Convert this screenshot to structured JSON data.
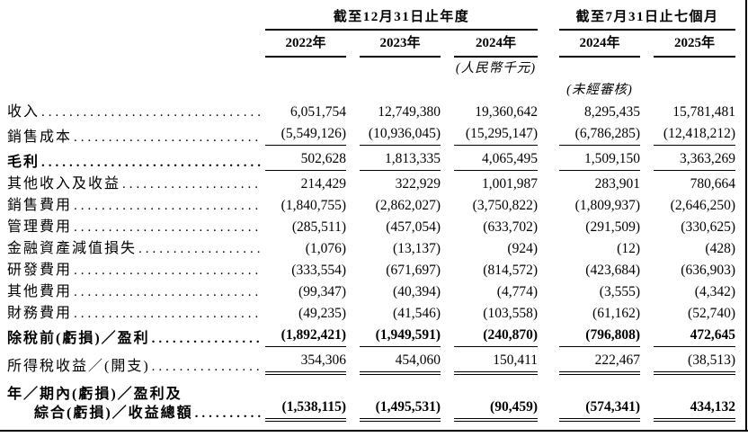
{
  "table": {
    "col_groups": [
      {
        "title": "截至12月31日止年度",
        "cols": [
          "2022年",
          "2023年",
          "2024年"
        ]
      },
      {
        "title": "截至7月31日止七個月",
        "cols": [
          "2024年",
          "2025年"
        ]
      }
    ],
    "unit_note": "(人民幣千元)",
    "unaudited_note": "(未經審核)",
    "rows": [
      {
        "label": "收入",
        "values": [
          "6,051,754",
          "12,749,380",
          "19,360,642",
          "8,295,435",
          "15,781,481"
        ],
        "rule": "none"
      },
      {
        "label": "銷售成本",
        "values": [
          "(5,549,126)",
          "(10,936,045)",
          "(15,295,147)",
          "(6,786,285)",
          "(12,418,212)"
        ],
        "rule": "single"
      },
      {
        "label": "毛利",
        "bold_label": true,
        "values": [
          "502,628",
          "1,813,335",
          "4,065,495",
          "1,509,150",
          "3,363,269"
        ],
        "rule": "single"
      },
      {
        "label": "其他收入及收益",
        "values": [
          "214,429",
          "322,929",
          "1,001,987",
          "283,901",
          "780,664"
        ],
        "rule": "none"
      },
      {
        "label": "銷售費用",
        "values": [
          "(1,840,755)",
          "(2,862,027)",
          "(3,750,822)",
          "(1,809,937)",
          "(2,646,250)"
        ],
        "rule": "none"
      },
      {
        "label": "管理費用",
        "values": [
          "(285,511)",
          "(457,054)",
          "(633,702)",
          "(291,509)",
          "(330,625)"
        ],
        "rule": "none"
      },
      {
        "label": "金融資產減值損失",
        "values": [
          "(1,076)",
          "(13,137)",
          "(924)",
          "(12)",
          "(428)"
        ],
        "rule": "none"
      },
      {
        "label": "研發費用",
        "values": [
          "(333,554)",
          "(671,697)",
          "(814,572)",
          "(423,684)",
          "(636,903)"
        ],
        "rule": "none"
      },
      {
        "label": "其他費用",
        "values": [
          "(99,347)",
          "(40,394)",
          "(4,774)",
          "(3,555)",
          "(4,342)"
        ],
        "rule": "none"
      },
      {
        "label": "財務費用",
        "values": [
          "(49,235)",
          "(41,546)",
          "(103,558)",
          "(61,162)",
          "(52,740)"
        ],
        "rule": "none"
      },
      {
        "label": "除稅前(虧損)／盈利",
        "bold_label": true,
        "bold_values": true,
        "values": [
          "(1,892,421)",
          "(1,949,591)",
          "(240,870)",
          "(796,808)",
          "472,645"
        ],
        "rule": "single"
      },
      {
        "label": "所得稅收益／(開支)",
        "values": [
          "354,306",
          "454,060",
          "150,411",
          "222,467",
          "(38,513)"
        ],
        "rule": "double"
      },
      {
        "label": "年／期內(虧損)／盈利及",
        "label2": "綜合(虧損)／收益總額",
        "bold_label": true,
        "bold_values": true,
        "values": [
          "(1,538,115)",
          "(1,495,531)",
          "(90,459)",
          "(574,341)",
          "434,132"
        ],
        "rule": "double"
      }
    ]
  }
}
